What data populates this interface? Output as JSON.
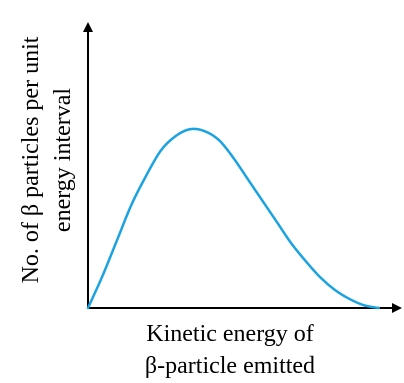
{
  "chart_data": {
    "type": "line",
    "title": "",
    "xlabel_lines": [
      "Kinetic energy of",
      "β-particle emitted"
    ],
    "ylabel_lines": [
      "No. of β particles per unit",
      "energy interval"
    ],
    "x": [
      0,
      0.05,
      0.1,
      0.15,
      0.2,
      0.25,
      0.3,
      0.35,
      0.4,
      0.45,
      0.5,
      0.55,
      0.6,
      0.65,
      0.7,
      0.75,
      0.8,
      0.85,
      0.9,
      0.95,
      1.0
    ],
    "series": [
      {
        "values": [
          0,
          0.18,
          0.38,
          0.58,
          0.74,
          0.88,
          0.96,
          1.0,
          0.99,
          0.94,
          0.84,
          0.72,
          0.6,
          0.48,
          0.36,
          0.26,
          0.17,
          0.1,
          0.05,
          0.015,
          0
        ]
      }
    ],
    "xlim": [
      0,
      1.08
    ],
    "ylim": [
      0,
      1.6
    ],
    "grid": false,
    "legend": "none",
    "ticks": "none",
    "line_color": "#1aa3e0",
    "axis_color": "#000000"
  }
}
